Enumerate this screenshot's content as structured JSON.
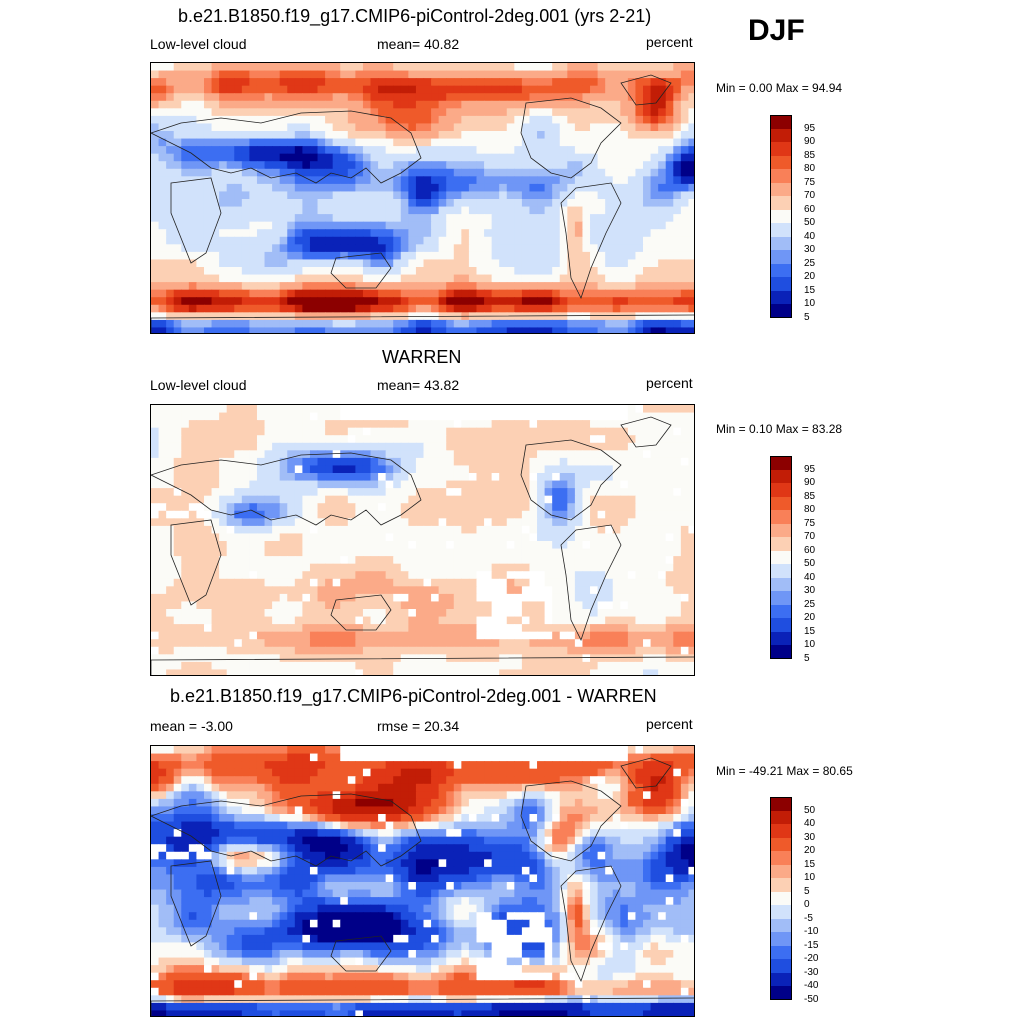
{
  "season": "DJF",
  "palette": {
    "levels10": [
      "#000088",
      "#0a22b8",
      "#1f4ee0",
      "#3c6ef2",
      "#6f96f6",
      "#a1bdf7",
      "#d1e2fb",
      "#fbfbf7",
      "#fcd0b4",
      "#fbaa88",
      "#f98058",
      "#ef5a2a",
      "#e03716",
      "#c21d06",
      "#8c0000"
    ],
    "levels_diff": [
      "#000088",
      "#0a22b8",
      "#1f4ee0",
      "#3c6ef2",
      "#6f96f6",
      "#a1bdf7",
      "#d1e2fb",
      "#fbfbf7",
      "#fcd0b4",
      "#fbaa88",
      "#f98058",
      "#ef5a2a",
      "#e03716",
      "#c21d06",
      "#8c0000"
    ]
  },
  "panels": [
    {
      "title": "b.e21.B1850.f19_g17.CMIP6-piControl-2deg.001 (yrs 2-21)",
      "left_label": "Low-level cloud",
      "center_label": "mean=  40.82",
      "units": "percent",
      "minmax": "Min =   0.00 Max =  94.94",
      "colorbar_labels": [
        "95",
        "90",
        "85",
        "80",
        "75",
        "70",
        "60",
        "50",
        "40",
        "30",
        "25",
        "20",
        "15",
        "10",
        "5"
      ],
      "map": "model"
    },
    {
      "title": "WARREN",
      "left_label": "Low-level cloud",
      "center_label": "mean=  43.82",
      "units": "percent",
      "minmax": "Min =   0.10 Max =  83.28",
      "colorbar_labels": [
        "95",
        "90",
        "85",
        "80",
        "75",
        "70",
        "60",
        "50",
        "40",
        "30",
        "25",
        "20",
        "15",
        "10",
        "5"
      ],
      "map": "obs"
    },
    {
      "title": "b.e21.B1850.f19_g17.CMIP6-piControl-2deg.001 - WARREN",
      "left_label": "mean =  -3.00",
      "center_label": "rmse =  20.34",
      "units": "percent",
      "minmax": "Min = -49.21 Max =  80.65",
      "colorbar_labels": [
        "50",
        "40",
        "30",
        "20",
        "15",
        "10",
        "5",
        "0",
        "-5",
        "-10",
        "-15",
        "-20",
        "-30",
        "-40",
        "-50"
      ],
      "map": "diff"
    }
  ]
}
